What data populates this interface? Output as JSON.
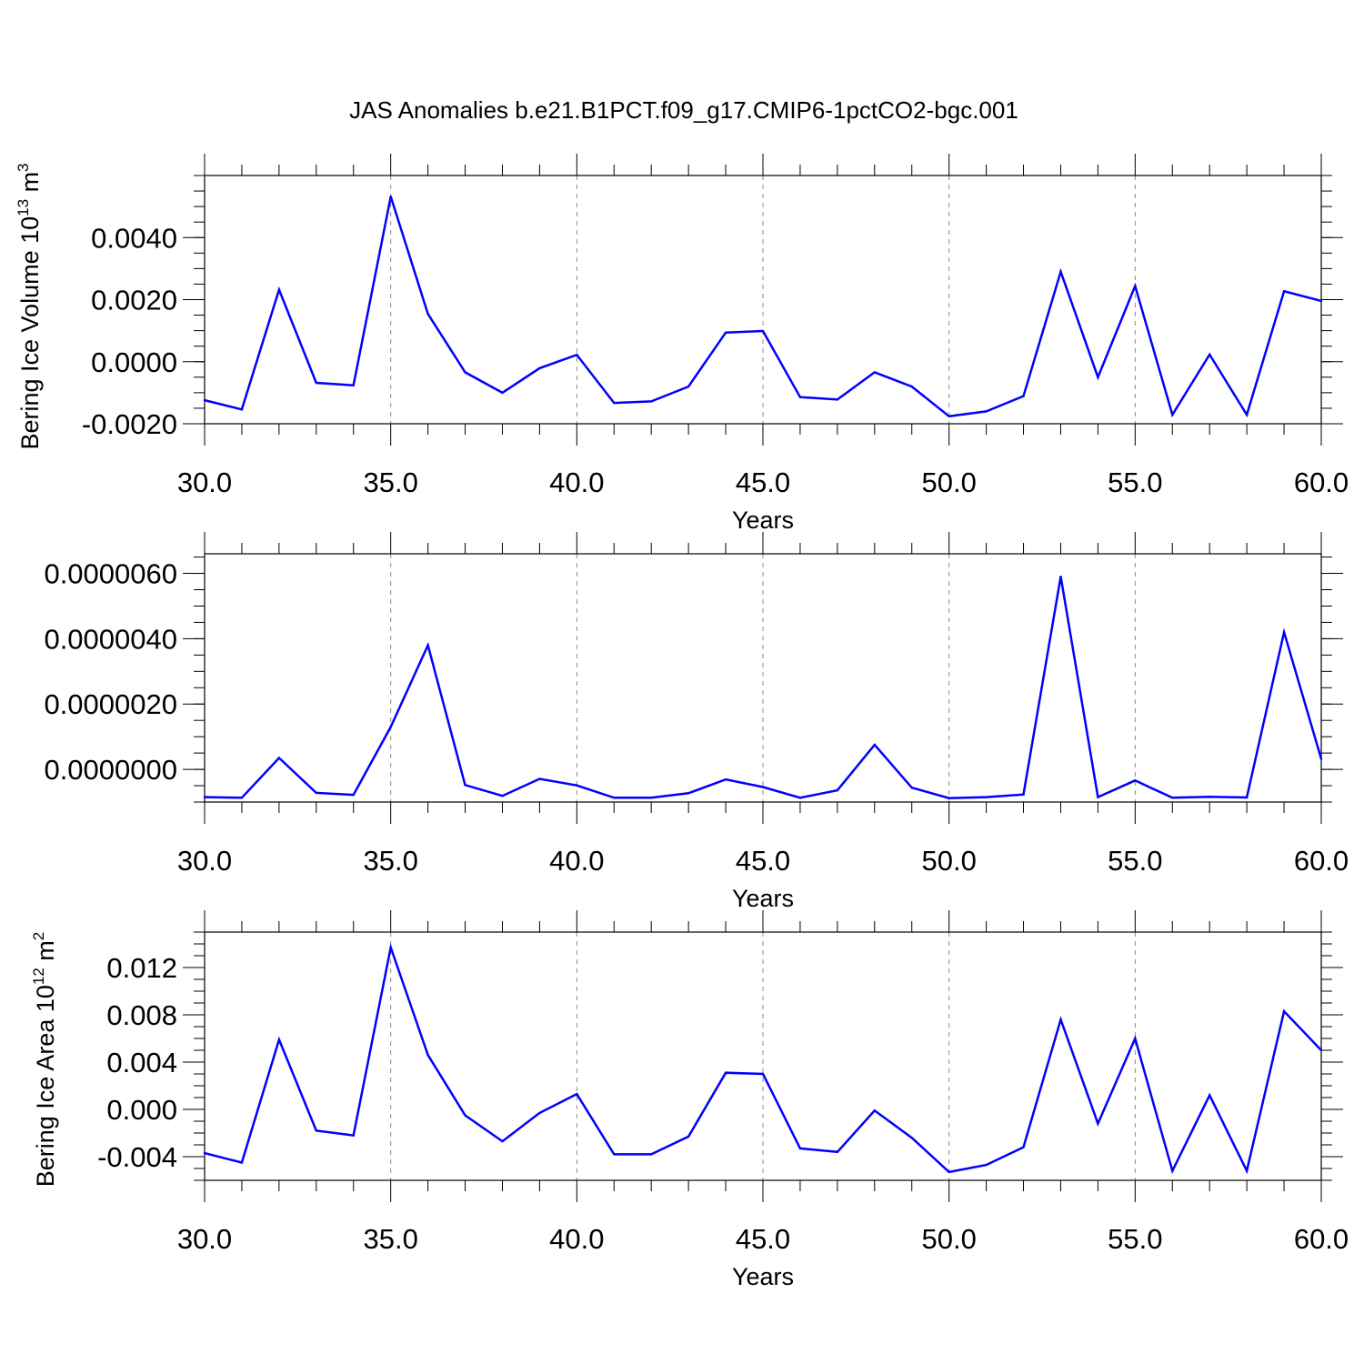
{
  "title": "JAS Anomalies b.e21.B1PCT.f09_g17.CMIP6-1pctCO2-bgc.001",
  "chart_data": [
    {
      "type": "line",
      "xlabel": "Years",
      "ylabel": "Bering Ice Volume 10",
      "ylabel_sup": "13",
      "ylabel_unit": " m",
      "ylabel_unit_sup": "3",
      "xlim": [
        30,
        60
      ],
      "ylim": [
        -0.002,
        0.006
      ],
      "xticks": [
        30,
        35,
        40,
        45,
        50,
        55,
        60
      ],
      "xtick_labels": [
        "30.0",
        "35.0",
        "40.0",
        "45.0",
        "50.0",
        "55.0",
        "60.0"
      ],
      "yticks": [
        -0.002,
        0,
        0.002,
        0.004
      ],
      "ytick_labels": [
        "-0.0020",
        "0.0000",
        "0.0020",
        "0.0040"
      ],
      "color": "#0000ff",
      "x": [
        30,
        31,
        32,
        33,
        34,
        35,
        36,
        37,
        38,
        39,
        40,
        41,
        42,
        43,
        44,
        45,
        46,
        47,
        48,
        49,
        50,
        51,
        52,
        53,
        54,
        55,
        56,
        57,
        58,
        59,
        60
      ],
      "values": [
        -0.00124,
        -0.00154,
        0.00232,
        -0.00068,
        -0.00076,
        0.00532,
        0.00154,
        -0.00034,
        -0.001,
        -0.00021,
        0.00022,
        -0.00133,
        -0.00128,
        -0.0008,
        0.00094,
        0.00099,
        -0.00114,
        -0.00122,
        -0.00034,
        -0.0008,
        -0.00176,
        -0.0016,
        -0.00111,
        0.0029,
        -0.0005,
        0.00244,
        -0.00171,
        0.00023,
        -0.00171,
        0.00227,
        0.00196
      ]
    },
    {
      "type": "line",
      "xlabel": "Years",
      "ylabel": "",
      "xlim": [
        30,
        60
      ],
      "ylim": [
        -1e-06,
        6.6e-06
      ],
      "xticks": [
        30,
        35,
        40,
        45,
        50,
        55,
        60
      ],
      "xtick_labels": [
        "30.0",
        "35.0",
        "40.0",
        "45.0",
        "50.0",
        "55.0",
        "60.0"
      ],
      "yticks": [
        0,
        2e-06,
        4e-06,
        6e-06
      ],
      "ytick_labels": [
        "0.0000000",
        "0.0000020",
        "0.0000040",
        "0.0000060"
      ],
      "color": "#0000ff",
      "x": [
        30,
        31,
        32,
        33,
        34,
        35,
        36,
        37,
        38,
        39,
        40,
        41,
        42,
        43,
        44,
        45,
        46,
        47,
        48,
        49,
        50,
        51,
        52,
        53,
        54,
        55,
        56,
        57,
        58,
        59,
        60
      ],
      "values": [
        -8.5e-07,
        -8.7e-07,
        3.5e-07,
        -7.2e-07,
        -7.8e-07,
        1.3e-06,
        3.8e-06,
        -4.8e-07,
        -8.1e-07,
        -2.9e-07,
        -4.9e-07,
        -8.7e-07,
        -8.7e-07,
        -7.3e-07,
        -3.1e-07,
        -5.4e-07,
        -8.7e-07,
        -6.4e-07,
        7.5e-07,
        -5.6e-07,
        -8.8e-07,
        -8.5e-07,
        -7.7e-07,
        5.9e-06,
        -8.5e-07,
        -3.4e-07,
        -8.7e-07,
        -8.4e-07,
        -8.6e-07,
        4.2e-06,
        3.2e-07
      ]
    },
    {
      "type": "line",
      "xlabel": "Years",
      "ylabel": "Bering Ice Area 10",
      "ylabel_sup": "12",
      "ylabel_unit": " m",
      "ylabel_unit_sup": "2",
      "xlim": [
        30,
        60
      ],
      "ylim": [
        -0.006,
        0.015
      ],
      "xticks": [
        30,
        35,
        40,
        45,
        50,
        55,
        60
      ],
      "xtick_labels": [
        "30.0",
        "35.0",
        "40.0",
        "45.0",
        "50.0",
        "55.0",
        "60.0"
      ],
      "yticks": [
        -0.004,
        0,
        0.004,
        0.008,
        0.012
      ],
      "ytick_labels": [
        "-0.004",
        "0.000",
        "0.004",
        "0.008",
        "0.012"
      ],
      "color": "#0000ff",
      "x": [
        30,
        31,
        32,
        33,
        34,
        35,
        36,
        37,
        38,
        39,
        40,
        41,
        42,
        43,
        44,
        45,
        46,
        47,
        48,
        49,
        50,
        51,
        52,
        53,
        54,
        55,
        56,
        57,
        58,
        59,
        60
      ],
      "values": [
        -0.0037,
        -0.0045,
        0.0059,
        -0.0018,
        -0.0022,
        0.0137,
        0.0046,
        -0.0005,
        -0.0027,
        -0.0003,
        0.0013,
        -0.0038,
        -0.0038,
        -0.0023,
        0.0031,
        0.003,
        -0.0033,
        -0.0036,
        -0.0001,
        -0.0024,
        -0.0053,
        -0.0047,
        -0.0032,
        0.0076,
        -0.0012,
        0.006,
        -0.0052,
        0.0012,
        -0.0052,
        0.0083,
        0.005
      ]
    }
  ]
}
